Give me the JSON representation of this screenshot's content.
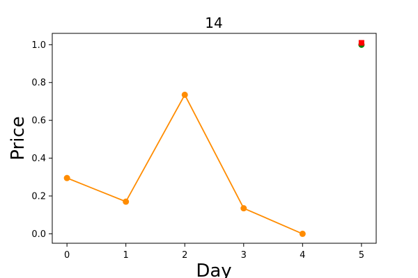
{
  "chart_data": {
    "type": "line",
    "title": "14",
    "xlabel": "Day",
    "ylabel": "Price",
    "xlim": [
      -0.25,
      5.25
    ],
    "ylim": [
      -0.05,
      1.06
    ],
    "xticks": [
      "0",
      "1",
      "2",
      "3",
      "4",
      "5"
    ],
    "yticks": [
      "0.0",
      "0.2",
      "0.4",
      "0.6",
      "0.8",
      "1.0"
    ],
    "grid": false,
    "series": [
      {
        "kind": "line",
        "color": "#ff8c00",
        "x": [
          0,
          1,
          2,
          3,
          4
        ],
        "y": [
          0.295,
          0.17,
          0.735,
          0.135,
          0.0
        ]
      },
      {
        "kind": "scatter",
        "marker": "circle",
        "color": "#008000",
        "x": [
          5
        ],
        "y": [
          1.0
        ]
      },
      {
        "kind": "scatter",
        "marker": "square",
        "color": "#ff0000",
        "x": [
          5
        ],
        "y": [
          1.01
        ]
      }
    ]
  }
}
